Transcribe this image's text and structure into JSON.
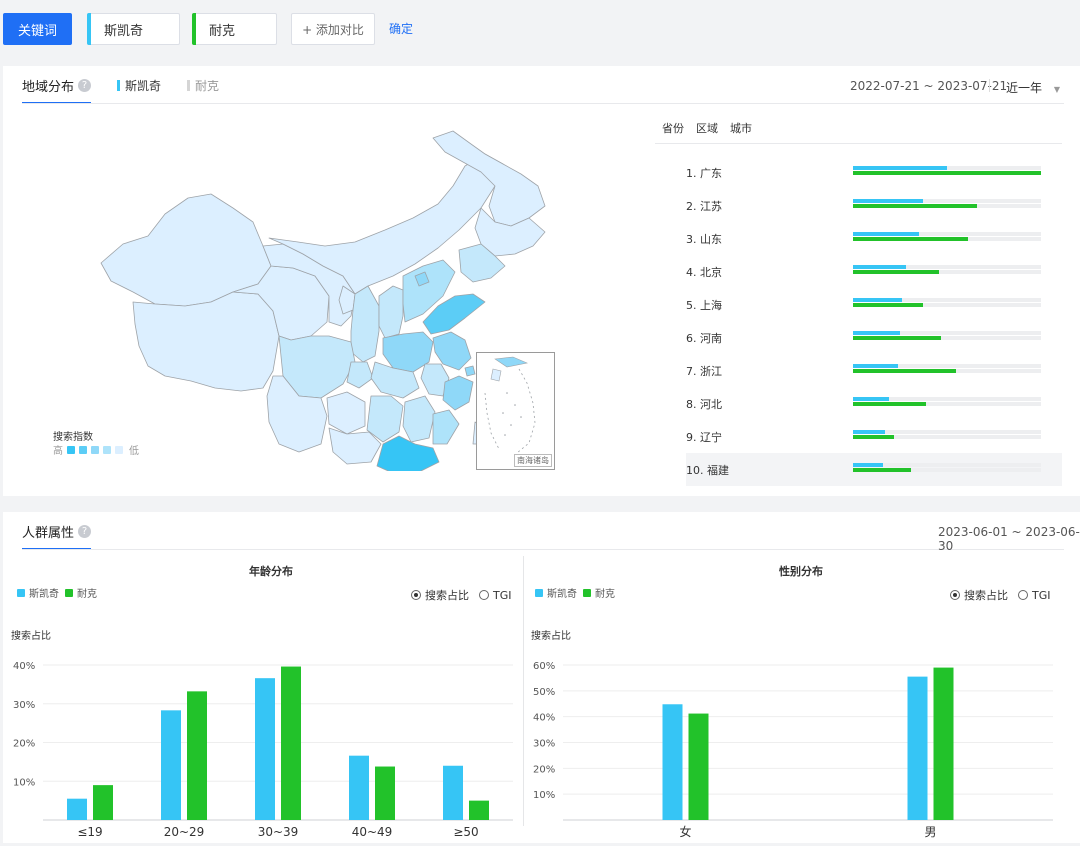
{
  "topbar": {
    "keyword_button": "关键词",
    "keywords": [
      {
        "label": "斯凯奇",
        "color": "#36c5f5"
      },
      {
        "label": "耐克",
        "color": "#22c22a"
      }
    ],
    "add_compare": "+ 添加对比",
    "confirm": "确定"
  },
  "region": {
    "tab": "地域分布",
    "legend": [
      "斯凯奇",
      "耐克"
    ],
    "date_range": "2022-07-21 ~ 2023-07-21",
    "period": "近一年",
    "sub_tabs": [
      "省份",
      "区域",
      "城市"
    ],
    "map_legend_title": "搜索指数",
    "map_legend_high": "高",
    "map_legend_low": "低",
    "inset_label": "南海诸岛",
    "ranking": [
      {
        "label": "1.  广东",
        "a": 0.5,
        "b": 1.0
      },
      {
        "label": "2.  江苏",
        "a": 0.37,
        "b": 0.66
      },
      {
        "label": "3.  山东",
        "a": 0.35,
        "b": 0.61
      },
      {
        "label": "4.  北京",
        "a": 0.28,
        "b": 0.46
      },
      {
        "label": "5.  上海",
        "a": 0.26,
        "b": 0.37
      },
      {
        "label": "6.  河南",
        "a": 0.25,
        "b": 0.47
      },
      {
        "label": "7.  浙江",
        "a": 0.24,
        "b": 0.55
      },
      {
        "label": "8.  河北",
        "a": 0.19,
        "b": 0.39
      },
      {
        "label": "9.  辽宁",
        "a": 0.17,
        "b": 0.22
      },
      {
        "label": "10. 福建",
        "a": 0.16,
        "b": 0.31
      }
    ]
  },
  "crowd": {
    "tab": "人群属性",
    "date_range": "2023-06-01 ~ 2023-06-30",
    "radio_share": "搜索占比",
    "radio_tgi": "TGI",
    "series_names": [
      "斯凯奇",
      "耐克"
    ],
    "colors": {
      "a": "#36c5f5",
      "b": "#22c22a"
    }
  },
  "chart_data": [
    {
      "type": "bar",
      "title": "年龄分布",
      "ylabel": "搜索占比",
      "ylim": [
        0,
        40
      ],
      "yticks": [
        "40%",
        "30%",
        "20%",
        "10%"
      ],
      "categories": [
        "≤19",
        "20~29",
        "30~39",
        "40~49",
        "≥50"
      ],
      "series": [
        {
          "name": "斯凯奇",
          "values": [
            5.5,
            28.3,
            36.6,
            16.6,
            14.0
          ]
        },
        {
          "name": "耐克",
          "values": [
            9.0,
            33.2,
            39.6,
            13.8,
            5.0
          ]
        }
      ]
    },
    {
      "type": "bar",
      "title": "性别分布",
      "ylabel": "搜索占比",
      "ylim": [
        0,
        60
      ],
      "yticks": [
        "60%",
        "50%",
        "40%",
        "30%",
        "20%",
        "10%"
      ],
      "categories": [
        "女",
        "男"
      ],
      "series": [
        {
          "name": "斯凯奇",
          "values": [
            44.8,
            55.5
          ]
        },
        {
          "name": "耐克",
          "values": [
            41.2,
            59.0
          ]
        }
      ]
    }
  ]
}
